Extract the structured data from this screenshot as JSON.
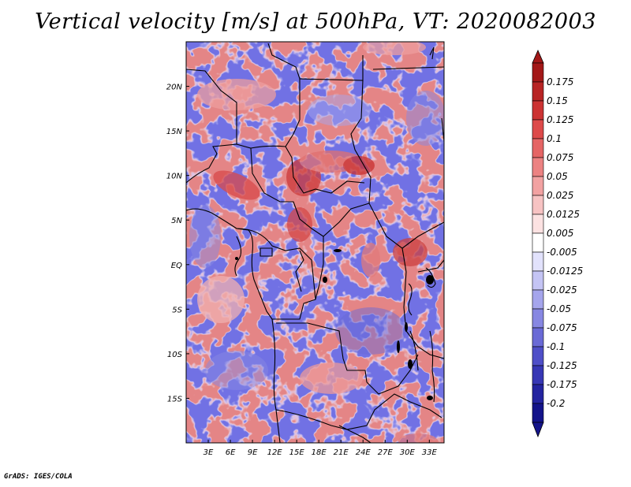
{
  "title": "Vertical velocity [m/s] at 500hPa, VT: 2020082003",
  "credit": "GrADS: IGES/COLA",
  "map": {
    "projection": "latlon",
    "lon_range": [
      0,
      35
    ],
    "lat_range": [
      -20,
      25
    ],
    "lat_labels": [
      "20N",
      "15N",
      "10N",
      "5N",
      "EQ",
      "5S",
      "10S",
      "15S"
    ],
    "lat_values": [
      20,
      15,
      10,
      5,
      0,
      -5,
      -10,
      -15
    ],
    "lon_labels": [
      "3E",
      "6E",
      "9E",
      "12E",
      "15E",
      "18E",
      "21E",
      "24E",
      "27E",
      "30E",
      "33E"
    ],
    "lon_values": [
      3,
      6,
      9,
      12,
      15,
      18,
      21,
      24,
      27,
      30,
      33
    ]
  },
  "colorbar": {
    "labels": [
      "0.175",
      "0.15",
      "0.125",
      "0.1",
      "0.075",
      "0.05",
      "0.025",
      "0.0125",
      "0.005",
      "-0.005",
      "-0.0125",
      "-0.025",
      "-0.05",
      "-0.075",
      "-0.1",
      "-0.125",
      "-0.175",
      "-0.2"
    ],
    "colors": [
      "#a31818",
      "#b82424",
      "#cc3333",
      "#dd4a4a",
      "#e56565",
      "#ec8282",
      "#f2a2a2",
      "#f7c3c3",
      "#fce2e2",
      "#ffffff",
      "#e2e2fc",
      "#c4c4f4",
      "#a5a5ec",
      "#8787e2",
      "#6a6ad6",
      "#4f4fc8",
      "#3737b5",
      "#2424a0",
      "#14148a"
    ]
  }
}
